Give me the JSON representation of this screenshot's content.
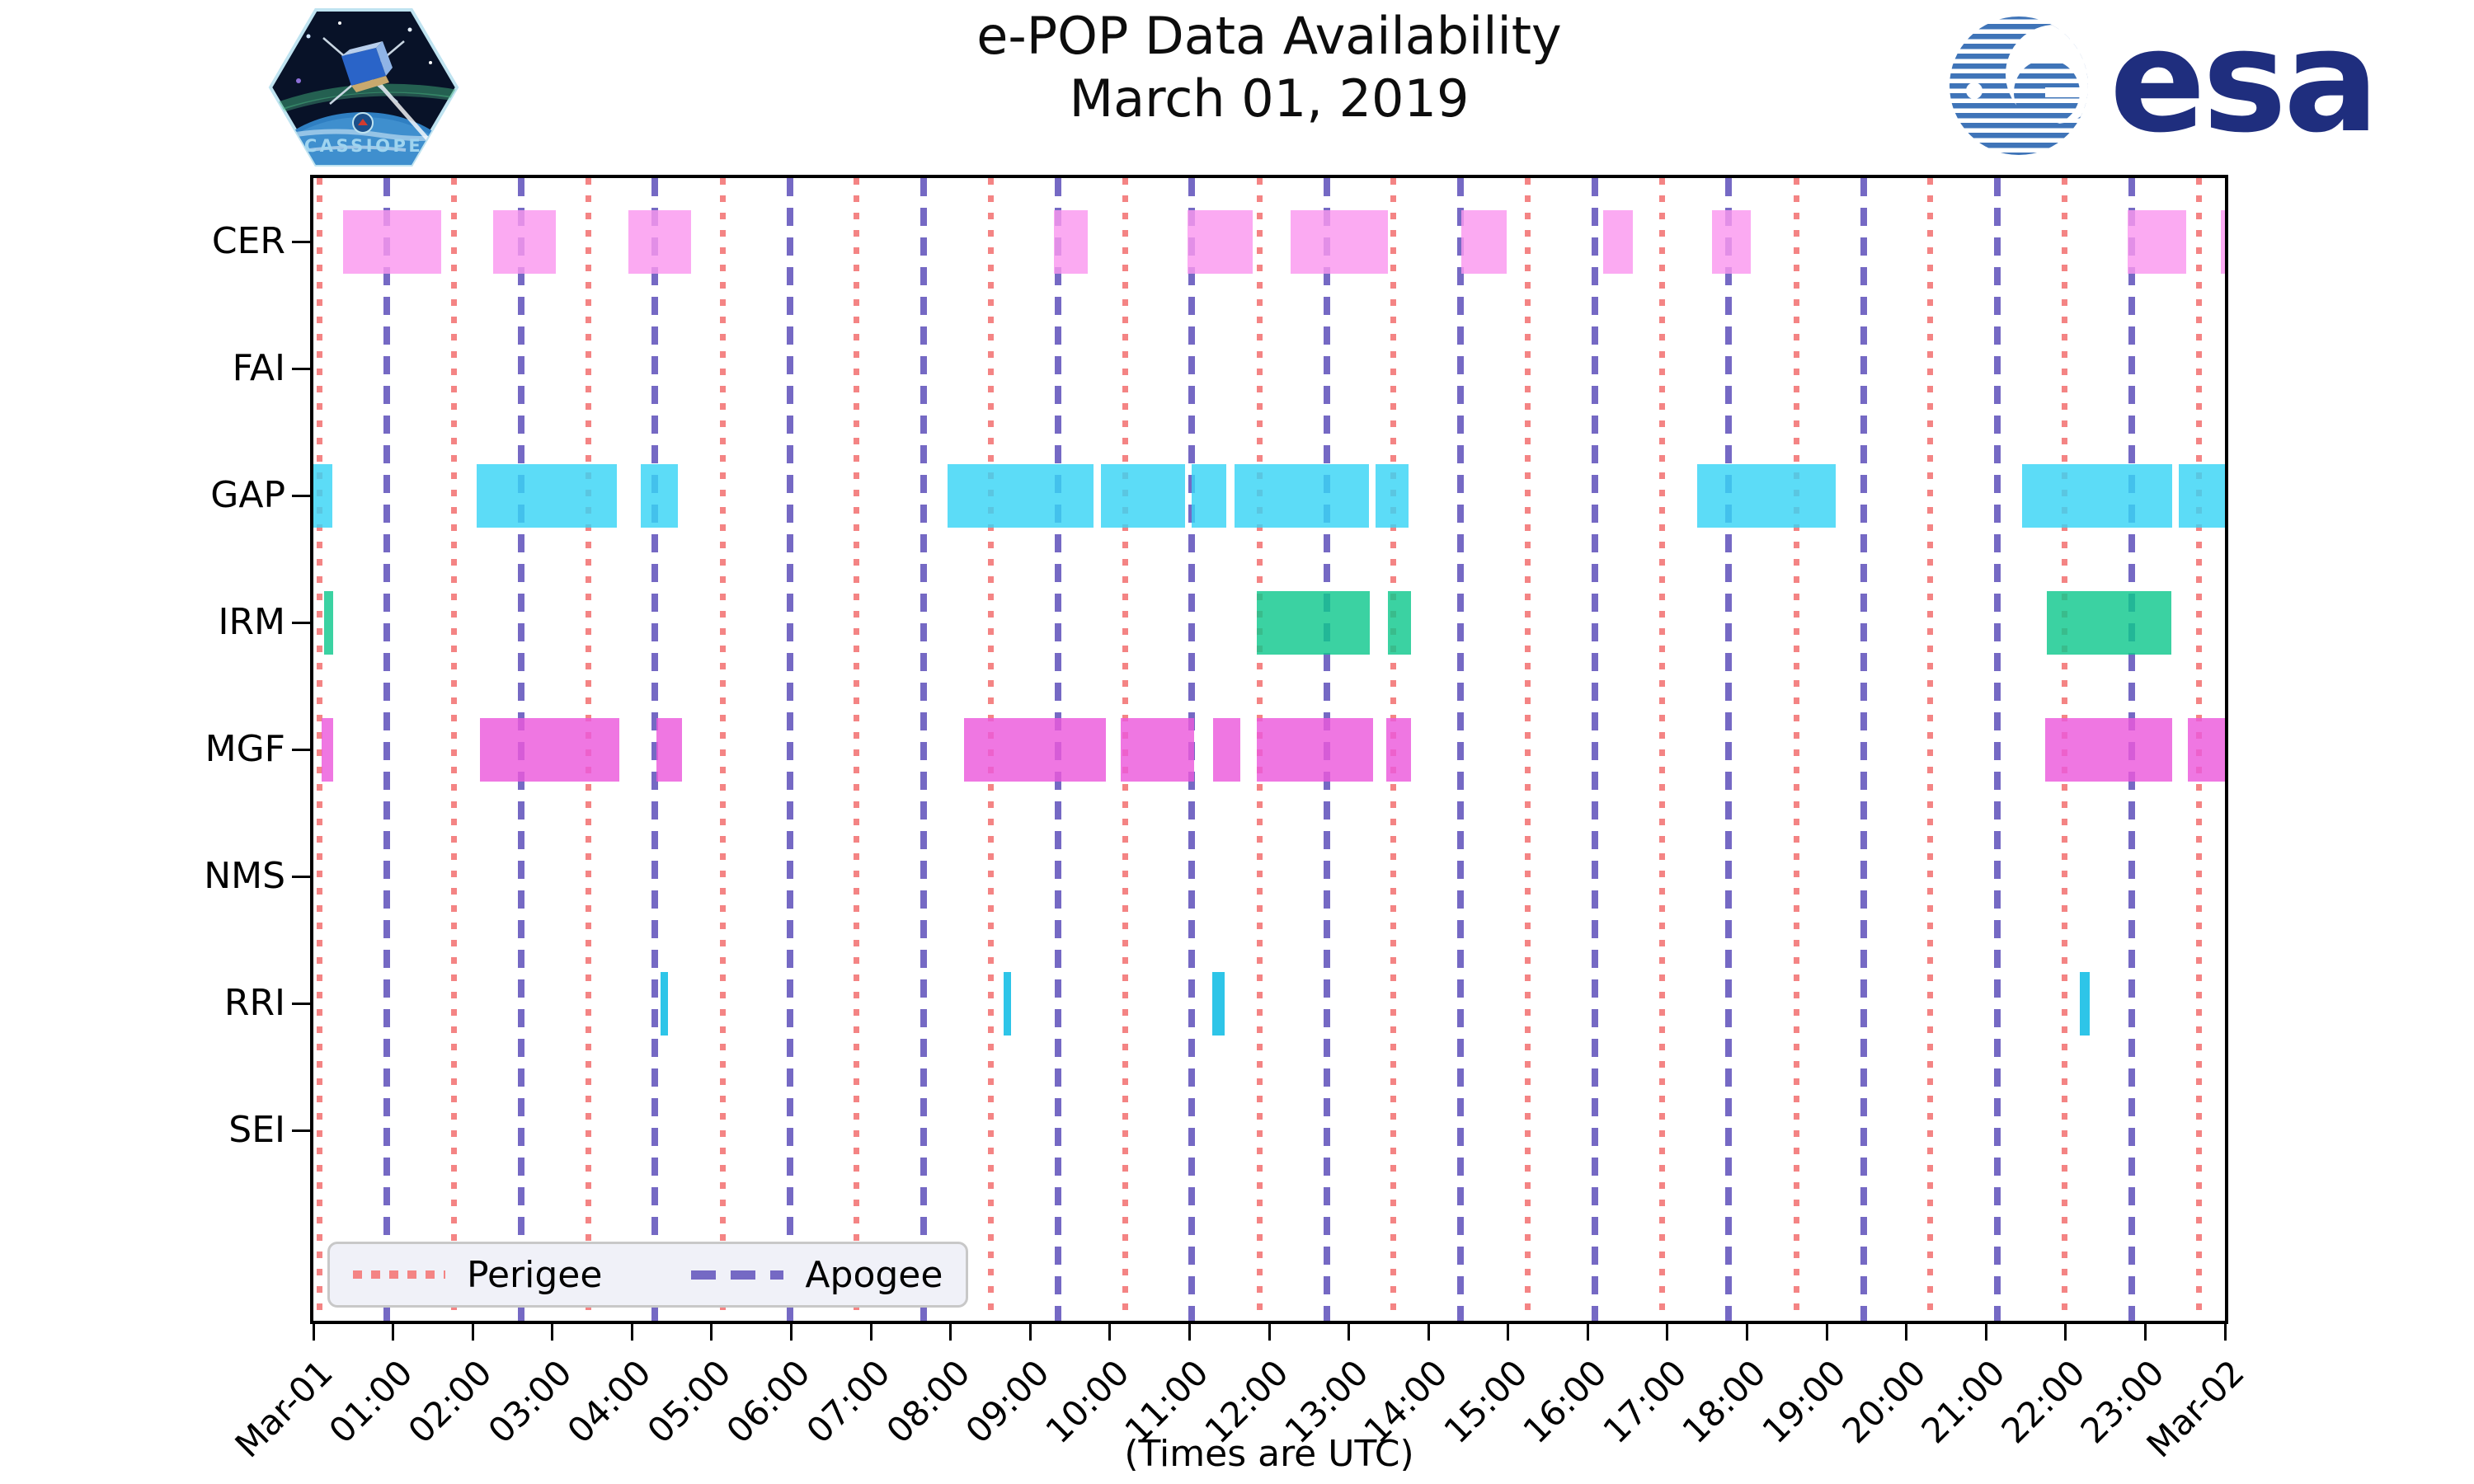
{
  "header": {
    "title_line1": "e-POP Data Availability",
    "title_line2": "March 01, 2019",
    "cassiope_patch_label": "CASSIOPE",
    "esa_logo_text": "esa"
  },
  "legend": {
    "perigee_label": "Perigee",
    "apogee_label": "Apogee"
  },
  "x_axis_caption": "(Times are UTC)",
  "colors": {
    "perigee_line": "#f48484",
    "apogee_line": "#7569c4",
    "axis": "#000000",
    "legend_bg": "#f0f1f8",
    "legend_border": "#c8c8c8",
    "esa_blue": "#1f2e7e",
    "esa_stripe": "#3f74b8",
    "patch_border": "#bfe3f0",
    "patch_space": "#081228"
  },
  "chart_data": {
    "type": "bar",
    "subtype": "availability-timeline-gantt",
    "title": "e-POP Data Availability",
    "subtitle": "March 01, 2019",
    "xlabel": "(Times are UTC)",
    "x_range_hours": [
      0,
      24
    ],
    "x_tick_labels": [
      "Mar-01",
      "01:00",
      "02:00",
      "03:00",
      "04:00",
      "05:00",
      "06:00",
      "07:00",
      "08:00",
      "09:00",
      "10:00",
      "11:00",
      "12:00",
      "13:00",
      "14:00",
      "15:00",
      "16:00",
      "17:00",
      "18:00",
      "19:00",
      "20:00",
      "21:00",
      "22:00",
      "23:00",
      "Mar-02"
    ],
    "rows": [
      "CER",
      "FAI",
      "GAP",
      "IRM",
      "MGF",
      "NMS",
      "RRI",
      "SEI"
    ],
    "grid": "vertical perigee/apogee event lines only",
    "legend_position": "lower left",
    "bar_opacity": 0.82,
    "series": [
      {
        "name": "CER",
        "color": "#fa97ef",
        "intervals_h": [
          [
            0.37,
            1.6
          ],
          [
            2.26,
            3.04
          ],
          [
            3.95,
            4.74
          ],
          [
            9.3,
            9.72
          ],
          [
            10.98,
            11.79
          ],
          [
            12.27,
            13.49
          ],
          [
            14.41,
            14.98
          ],
          [
            16.19,
            16.57
          ],
          [
            17.56,
            18.05
          ],
          [
            22.78,
            23.51
          ],
          [
            23.95,
            24.0
          ]
        ]
      },
      {
        "name": "FAI",
        "color": null,
        "intervals_h": []
      },
      {
        "name": "GAP",
        "color": "#38d4f5",
        "intervals_h": [
          [
            0.0,
            0.24
          ],
          [
            2.05,
            3.81
          ],
          [
            4.11,
            4.58
          ],
          [
            7.96,
            9.79
          ],
          [
            9.89,
            10.94
          ],
          [
            11.03,
            11.46
          ],
          [
            11.57,
            13.25
          ],
          [
            13.34,
            13.75
          ],
          [
            17.37,
            19.11
          ],
          [
            21.45,
            23.34
          ],
          [
            23.42,
            24.0
          ]
        ]
      },
      {
        "name": "IRM",
        "color": "#10c88e",
        "intervals_h": [
          [
            0.13,
            0.25
          ],
          [
            11.84,
            13.26
          ],
          [
            13.49,
            13.78
          ],
          [
            21.76,
            23.33
          ]
        ]
      },
      {
        "name": "MGF",
        "color": "#eb59dc",
        "intervals_h": [
          [
            0.1,
            0.25
          ],
          [
            2.09,
            3.84
          ],
          [
            4.31,
            4.63
          ],
          [
            8.17,
            9.95
          ],
          [
            10.14,
            11.06
          ],
          [
            11.3,
            11.64
          ],
          [
            11.84,
            13.3
          ],
          [
            13.47,
            13.78
          ],
          [
            21.74,
            23.34
          ],
          [
            23.53,
            24.0
          ]
        ]
      },
      {
        "name": "NMS",
        "color": null,
        "intervals_h": []
      },
      {
        "name": "RRI",
        "color": "#00b8e3",
        "intervals_h": [
          [
            4.36,
            4.45
          ],
          [
            8.67,
            8.76
          ],
          [
            11.29,
            11.44
          ],
          [
            22.18,
            22.3
          ]
        ]
      },
      {
        "name": "SEI",
        "color": null,
        "intervals_h": []
      }
    ],
    "perigee_lines_h": [
      0.08,
      1.77,
      3.45,
      5.14,
      6.82,
      8.51,
      10.19,
      11.88,
      13.56,
      15.25,
      16.93,
      18.62,
      20.3,
      21.99,
      23.67
    ],
    "apogee_lines_h": [
      0.92,
      2.61,
      4.29,
      5.98,
      7.66,
      9.35,
      11.03,
      12.72,
      14.4,
      16.09,
      17.77,
      19.46,
      21.14,
      22.83
    ]
  }
}
